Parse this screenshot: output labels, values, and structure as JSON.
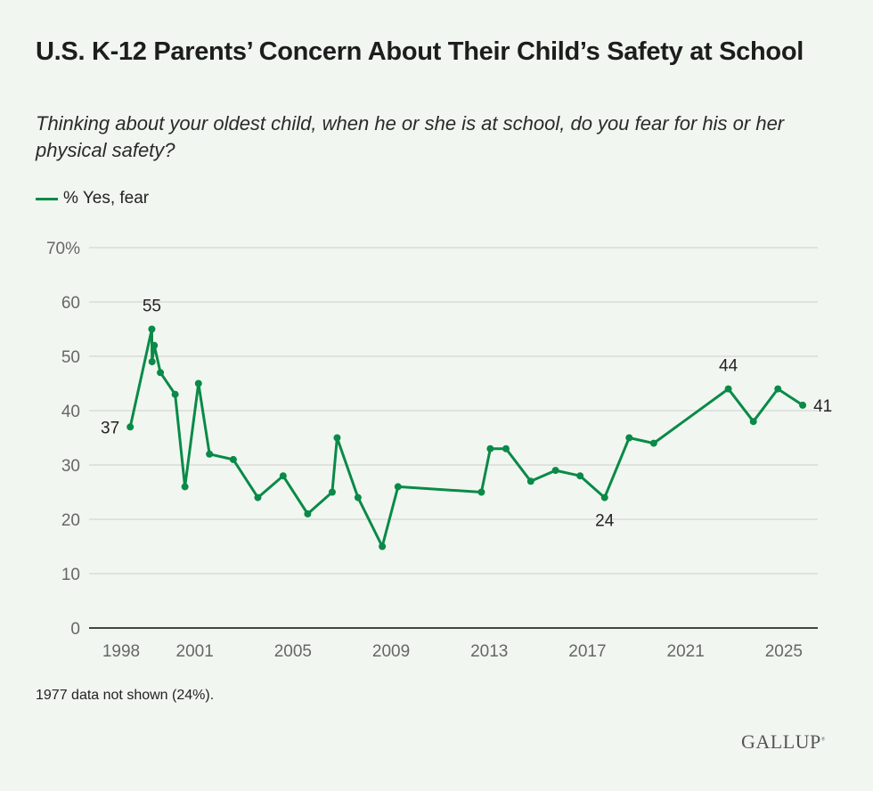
{
  "title": "U.S. K-12 Parents’ Concern About Their Child’s Safety at School",
  "subtitle": "Thinking about your oldest child, when he or she is at school, do you fear for his or her physical safety?",
  "note": "1977 data not shown (24%).",
  "logo": "GALLUP",
  "colors": {
    "series": "#0a8a48",
    "background": "#f1f7f0",
    "grid": "#d9dcd8",
    "axis": "#444444"
  },
  "chart_data": {
    "type": "line",
    "title": "U.S. K-12 Parents’ Concern About Their Child’s Safety at School",
    "ylim": [
      0,
      70
    ],
    "xlim": [
      1996.6,
      2026.2
    ],
    "grid": true,
    "legend_placement": "top-left",
    "y_ticks": [
      {
        "value": 0,
        "label": "0"
      },
      {
        "value": 10,
        "label": "10"
      },
      {
        "value": 20,
        "label": "20"
      },
      {
        "value": 30,
        "label": "30"
      },
      {
        "value": 40,
        "label": "40"
      },
      {
        "value": 50,
        "label": "50"
      },
      {
        "value": 60,
        "label": "60"
      },
      {
        "value": 70,
        "label": "70%"
      }
    ],
    "x_ticks": [
      1998,
      2001,
      2005,
      2009,
      2013,
      2017,
      2021,
      2025
    ],
    "x_tick_labels": [
      "1998",
      "2001",
      "2005",
      "2009",
      "2013",
      "2017",
      "2021",
      "2025"
    ],
    "series": [
      {
        "name": "% Yes, fear",
        "points": [
          {
            "x": 1998.37,
            "y": 37,
            "label": "37",
            "label_pos": "left"
          },
          {
            "x": 1999.25,
            "y": 55,
            "label": "55",
            "label_pos": "above"
          },
          {
            "x": 1999.26,
            "y": 49
          },
          {
            "x": 1999.35,
            "y": 52
          },
          {
            "x": 1999.6,
            "y": 47
          },
          {
            "x": 2000.2,
            "y": 43
          },
          {
            "x": 2000.6,
            "y": 26
          },
          {
            "x": 2001.15,
            "y": 45
          },
          {
            "x": 2001.6,
            "y": 32
          },
          {
            "x": 2002.57,
            "y": 31
          },
          {
            "x": 2003.57,
            "y": 24
          },
          {
            "x": 2004.6,
            "y": 28
          },
          {
            "x": 2005.6,
            "y": 21
          },
          {
            "x": 2006.6,
            "y": 25
          },
          {
            "x": 2006.8,
            "y": 35
          },
          {
            "x": 2007.65,
            "y": 24
          },
          {
            "x": 2008.64,
            "y": 15
          },
          {
            "x": 2009.28,
            "y": 26
          },
          {
            "x": 2012.68,
            "y": 25
          },
          {
            "x": 2013.04,
            "y": 33
          },
          {
            "x": 2013.68,
            "y": 33
          },
          {
            "x": 2014.69,
            "y": 27
          },
          {
            "x": 2015.7,
            "y": 29
          },
          {
            "x": 2016.7,
            "y": 28
          },
          {
            "x": 2017.7,
            "y": 24,
            "label": "24",
            "label_pos": "below"
          },
          {
            "x": 2018.7,
            "y": 35
          },
          {
            "x": 2019.7,
            "y": 34
          },
          {
            "x": 2022.74,
            "y": 44,
            "label": "44",
            "label_pos": "above"
          },
          {
            "x": 2023.76,
            "y": 38
          },
          {
            "x": 2024.76,
            "y": 44
          },
          {
            "x": 2025.77,
            "y": 41,
            "label": "41",
            "label_pos": "right"
          }
        ]
      }
    ]
  }
}
